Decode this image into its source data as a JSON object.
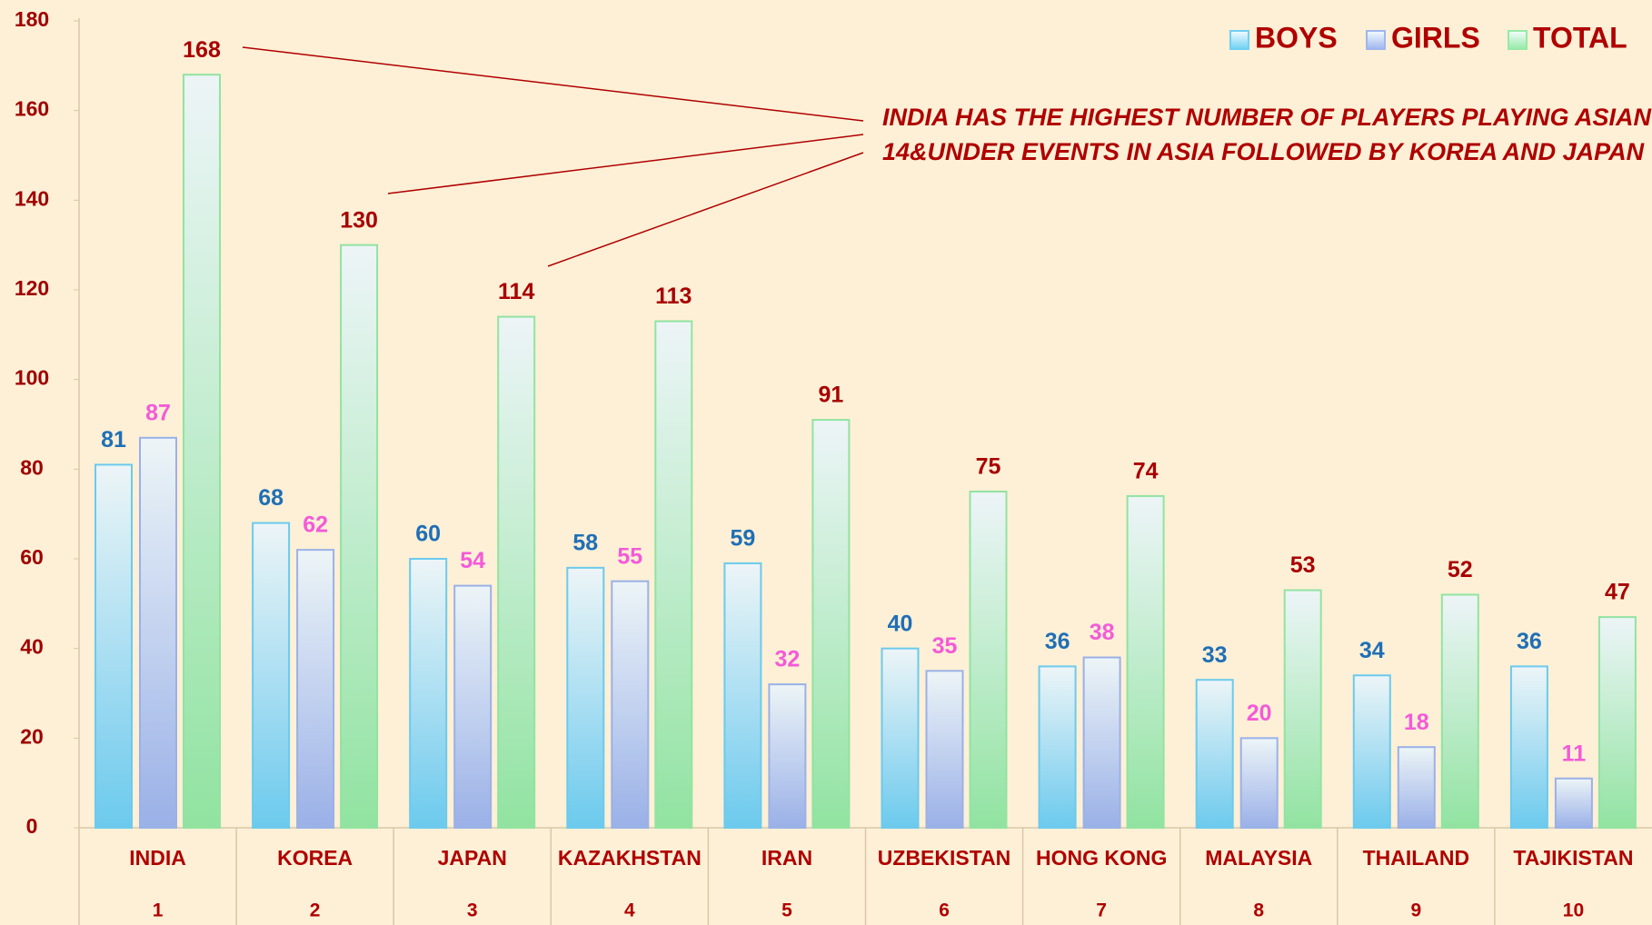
{
  "chart_data": {
    "type": "bar",
    "categories": [
      "INDIA",
      "KOREA",
      "JAPAN",
      "KAZAKHSTAN",
      "IRAN",
      "UZBEKISTAN",
      "HONG KONG",
      "MALAYSIA",
      "THAILAND",
      "TAJIKISTAN"
    ],
    "ranks": [
      1,
      2,
      3,
      4,
      5,
      6,
      7,
      8,
      9,
      10
    ],
    "series": [
      {
        "name": "BOYS",
        "color": "#6fd0f4",
        "label_color": "#1f6fb5",
        "values": [
          81,
          68,
          60,
          58,
          59,
          40,
          36,
          33,
          34,
          36
        ]
      },
      {
        "name": "GIRLS",
        "color": "#9fb6ee",
        "label_color": "#f45ad8",
        "values": [
          87,
          62,
          54,
          55,
          32,
          35,
          38,
          20,
          18,
          11
        ]
      },
      {
        "name": "TOTAL",
        "color": "#96eaa6",
        "label_color": "#a80000",
        "values": [
          168,
          130,
          114,
          113,
          91,
          75,
          74,
          53,
          52,
          47
        ]
      }
    ],
    "annotation": [
      "INDIA HAS THE HIGHEST NUMBER OF PLAYERS PLAYING ASIAN",
      "14&UNDER EVENTS IN ASIA FOLLOWED BY KOREA AND JAPAN"
    ],
    "ylim": [
      0,
      180
    ],
    "yticks": [
      0,
      20,
      40,
      60,
      80,
      100,
      120,
      140,
      160,
      180
    ],
    "grid": false,
    "legend": "top-right"
  }
}
